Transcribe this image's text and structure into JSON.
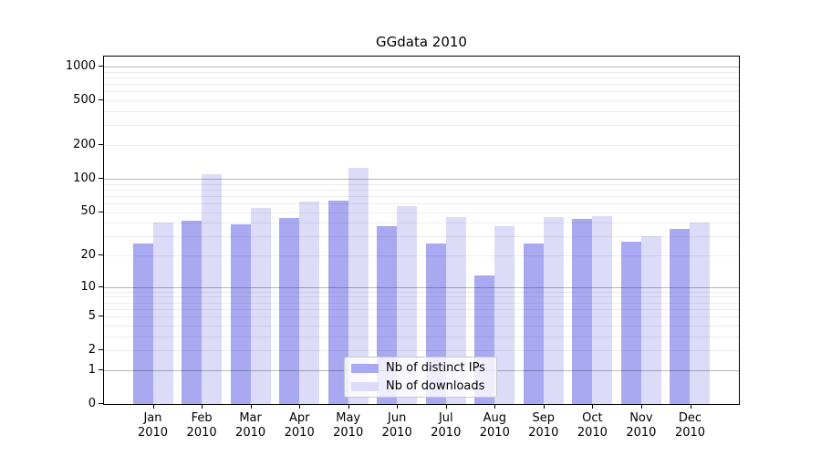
{
  "figure": {
    "background": "#ffffff"
  },
  "chart_data": {
    "type": "bar",
    "title": "GGdata 2010",
    "xlabel": "",
    "ylabel": "",
    "y_scale": "log1p (position proportional to log10(1+value))",
    "ylim": [
      0,
      1230
    ],
    "grid": true,
    "categories": [
      "Jan 2010",
      "Feb 2010",
      "Mar 2010",
      "Apr 2010",
      "May 2010",
      "Jun 2010",
      "Jul 2010",
      "Aug 2010",
      "Sep 2010",
      "Oct 2010",
      "Nov 2010",
      "Dec 2010"
    ],
    "series": [
      {
        "name": "Nb of distinct IPs",
        "color": "#a9a9f2",
        "values": [
          26,
          42,
          39,
          44,
          63,
          37,
          26,
          13,
          26,
          43,
          27,
          35
        ]
      },
      {
        "name": "Nb of downloads",
        "color": "#dcdcf8",
        "values": [
          40,
          110,
          55,
          62,
          125,
          57,
          45,
          37,
          45,
          46,
          30,
          40
        ]
      }
    ],
    "y_ticks": [
      0,
      1,
      2,
      5,
      10,
      20,
      50,
      100,
      200,
      500,
      1000
    ],
    "y_major_gridlines": [
      1,
      10,
      100,
      1000
    ],
    "y_minor_gridlines": [
      2,
      3,
      4,
      5,
      6,
      7,
      8,
      9,
      20,
      30,
      40,
      50,
      60,
      70,
      80,
      90,
      200,
      300,
      400,
      500,
      600,
      700,
      800,
      900
    ],
    "legend": {
      "position": "bottom-center",
      "entries": [
        "Nb of distinct IPs",
        "Nb of downloads"
      ]
    },
    "colors": {
      "axis": "#000000",
      "text": "#000000",
      "major_grid": "rgba(0,0,0,0.28)",
      "minor_grid": "rgba(0,0,0,0.07)",
      "legend_border": "#c8c8c8",
      "legend_background": "rgba(255,255,255,0.8)"
    }
  }
}
